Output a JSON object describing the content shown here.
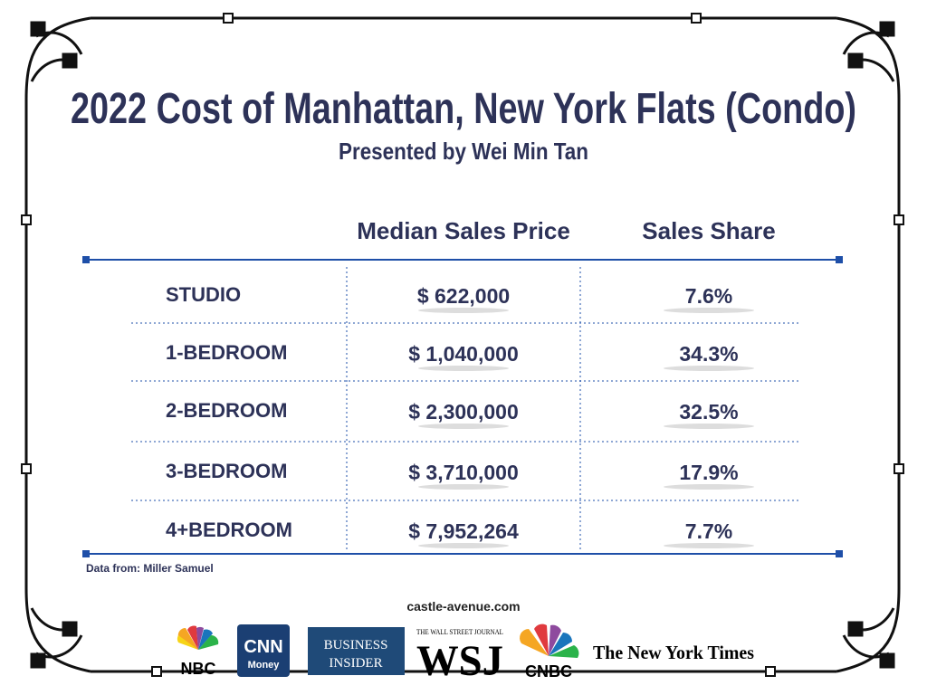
{
  "header": {
    "title": "2022 Cost of Manhattan, New York Flats (Condo)",
    "subtitle": "Presented by Wei Min Tan"
  },
  "table": {
    "columns": [
      "Median Sales Price",
      "Sales Share"
    ],
    "rows": [
      [
        "STUDIO",
        "$ 622,000",
        "7.6%"
      ],
      [
        "1-BEDROOM",
        "$ 1,040,000",
        "34.3%"
      ],
      [
        "2-BEDROOM",
        "$ 2,300,000",
        "32.5%"
      ],
      [
        "3-BEDROOM",
        "$ 3,710,000",
        "17.9%"
      ],
      [
        "4+BEDROOM",
        "$ 7,952,264",
        "7.7%"
      ]
    ]
  },
  "source": "Data from: Miller Samuel",
  "website": "castle-avenue.com",
  "logos": {
    "nbc": "NBC",
    "cnn": "CNN",
    "cnn_sub": "Money",
    "bi_1": "BUSINESS",
    "bi_2": "INSIDER",
    "wsj_top": "THE WALL STREET JOURNAL",
    "wsj": "WSJ",
    "cnbc": "CNBC",
    "nyt": "The New York Times"
  }
}
